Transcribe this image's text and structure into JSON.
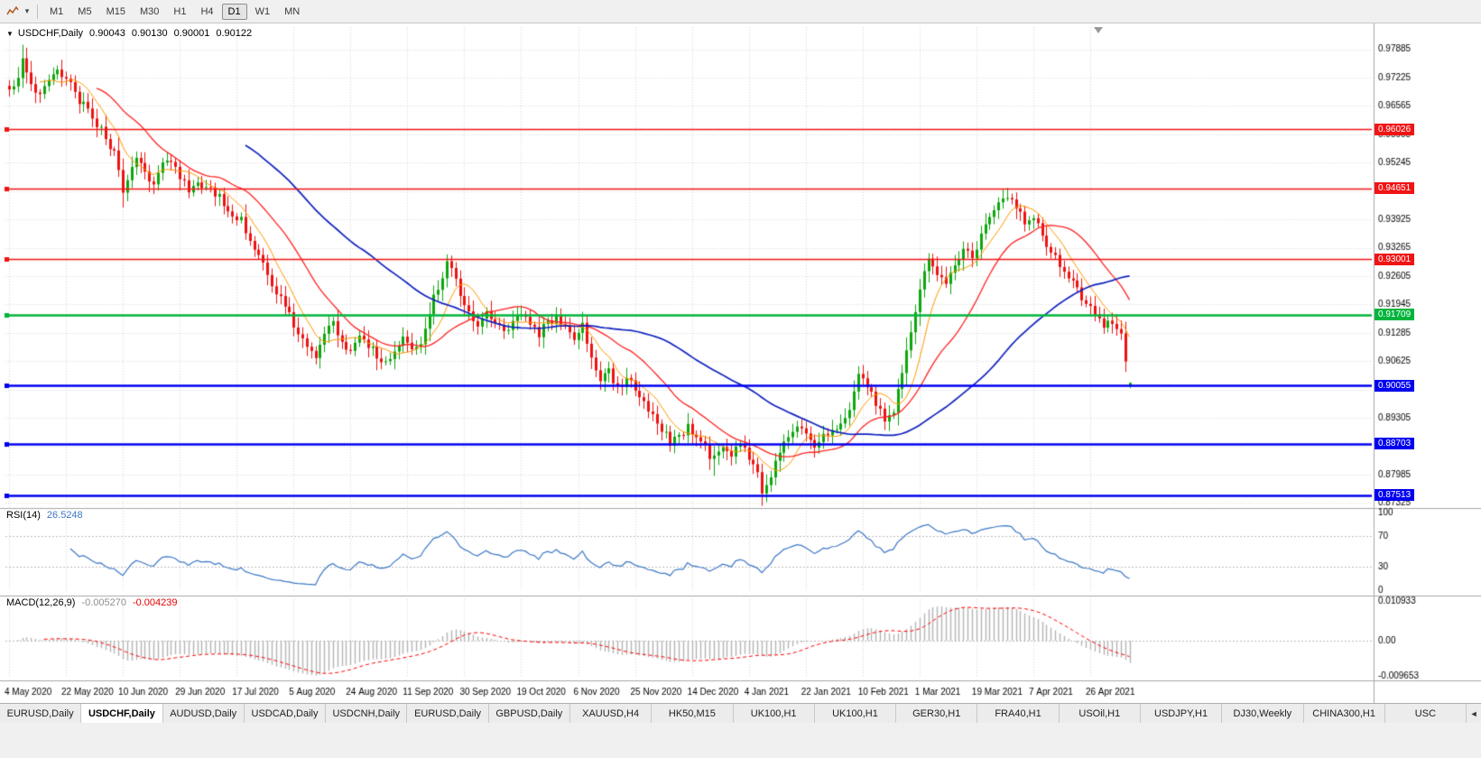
{
  "toolbar": {
    "timeframes": [
      "M1",
      "M5",
      "M15",
      "M30",
      "H1",
      "H4",
      "D1",
      "W1",
      "MN"
    ],
    "active_timeframe": "D1",
    "caret_glyph": "▾"
  },
  "chart_header": {
    "window_menu_icon": "▼",
    "symbol_period": "USDCHF,Daily",
    "open": "0.90043",
    "high": "0.90130",
    "low": "0.90001",
    "close": "0.90122"
  },
  "rsi_panel": {
    "label": "RSI(14)",
    "value": "26.5248",
    "axis_labels": [
      "100",
      "70",
      "30",
      "0"
    ]
  },
  "macd_panel": {
    "label": "MACD(12,26,9)",
    "main_value": "-0.005270",
    "signal_value": "-0.004239",
    "axis_labels": [
      "0.010933",
      "0.00",
      "-0.009653"
    ]
  },
  "tabs": {
    "active_index": 1,
    "scroll_left_icon": "◄",
    "items": [
      "EURUSD,Daily",
      "USDCHF,Daily",
      "AUDUSD,Daily",
      "USDCAD,Daily",
      "USDCNH,Daily",
      "EURUSD,Daily",
      "GBPUSD,Daily",
      "XAUUSD,H4",
      "HK50,M15",
      "UK100,H1",
      "UK100,H1",
      "GER30,H1",
      "FRA40,H1",
      "USOil,H1",
      "USDJPY,H1",
      "DJ30,Weekly",
      "CHINA300,H1",
      "USC"
    ]
  },
  "chart_data": {
    "type": "candlestick",
    "symbol": "USDCHF",
    "timeframe": "Daily",
    "bars": 257,
    "last_bar": {
      "open": 0.90043,
      "high": 0.9013,
      "low": 0.90001,
      "close": 0.90122
    },
    "price_axis": {
      "min": 0.8723,
      "max": 0.984,
      "decimals": 5
    },
    "tick_labels": [
      "0.97885",
      "0.97225",
      "0.96565",
      "0.95905",
      "0.95245",
      "0.94585",
      "0.93925",
      "0.93265",
      "0.92605",
      "0.91945",
      "0.91285",
      "0.90625",
      "0.89965",
      "0.89305",
      "0.88645",
      "0.87985",
      "0.87325"
    ],
    "x_label_bar_step": 13,
    "x_labels": [
      "4 May 2020",
      "22 May 2020",
      "10 Jun 2020",
      "29 Jun 2020",
      "17 Jul 2020",
      "5 Aug 2020",
      "24 Aug 2020",
      "11 Sep 2020",
      "30 Sep 2020",
      "19 Oct 2020",
      "6 Nov 2020",
      "25 Nov 2020",
      "14 Dec 2020",
      "4 Jan 2021",
      "22 Jan 2021",
      "10 Feb 2021",
      "1 Mar 2021",
      "19 Mar 2021",
      "7 Apr 2021",
      "26 Apr 2021"
    ],
    "levels": [
      {
        "price": 0.96026,
        "label": "0.96026",
        "color": "#f01414",
        "width": 1.5
      },
      {
        "price": 0.94651,
        "label": "0.94651",
        "color": "#f01414",
        "width": 1.5
      },
      {
        "price": 0.93001,
        "label": "0.93001",
        "color": "#f01414",
        "width": 1.5
      },
      {
        "price": 0.91709,
        "label": "0.91709",
        "color": "#00b43c",
        "width": 2.4
      },
      {
        "price": 0.90055,
        "label": "0.90055",
        "color": "#0000f0",
        "width": 2.4
      },
      {
        "price": 0.88703,
        "label": "0.88703",
        "color": "#0000f0",
        "width": 2.4
      },
      {
        "price": 0.87513,
        "label": "0.87513",
        "color": "#0000f0",
        "width": 2.4
      }
    ],
    "price_path": [
      [
        0,
        0.969
      ],
      [
        2,
        0.9722
      ],
      [
        3,
        0.9757
      ],
      [
        5,
        0.9706
      ],
      [
        7,
        0.9691
      ],
      [
        9,
        0.9718
      ],
      [
        11,
        0.9731
      ],
      [
        13,
        0.9713
      ],
      [
        14,
        0.9701
      ],
      [
        16,
        0.9666
      ],
      [
        18,
        0.9646
      ],
      [
        20,
        0.9613
      ],
      [
        22,
        0.9581
      ],
      [
        24,
        0.9546
      ],
      [
        25,
        0.9501
      ],
      [
        26,
        0.9449
      ],
      [
        27,
        0.9491
      ],
      [
        29,
        0.9539
      ],
      [
        31,
        0.9506
      ],
      [
        33,
        0.9473
      ],
      [
        35,
        0.9516
      ],
      [
        37,
        0.9529
      ],
      [
        39,
        0.9489
      ],
      [
        41,
        0.9466
      ],
      [
        43,
        0.9483
      ],
      [
        45,
        0.9466
      ],
      [
        47,
        0.9453
      ],
      [
        49,
        0.9429
      ],
      [
        51,
        0.9409
      ],
      [
        53,
        0.9389
      ],
      [
        55,
        0.9346
      ],
      [
        57,
        0.9303
      ],
      [
        59,
        0.9263
      ],
      [
        61,
        0.9223
      ],
      [
        63,
        0.9189
      ],
      [
        65,
        0.9149
      ],
      [
        67,
        0.9123
      ],
      [
        69,
        0.9089
      ],
      [
        70,
        0.9069
      ],
      [
        72,
        0.9129
      ],
      [
        74,
        0.9153
      ],
      [
        76,
        0.9109
      ],
      [
        78,
        0.9083
      ],
      [
        80,
        0.9119
      ],
      [
        82,
        0.9099
      ],
      [
        84,
        0.9073
      ],
      [
        86,
        0.9053
      ],
      [
        88,
        0.9093
      ],
      [
        90,
        0.9123
      ],
      [
        92,
        0.9091
      ],
      [
        94,
        0.9109
      ],
      [
        96,
        0.9179
      ],
      [
        98,
        0.9239
      ],
      [
        100,
        0.9289
      ],
      [
        101,
        0.9269
      ],
      [
        103,
        0.9219
      ],
      [
        105,
        0.9173
      ],
      [
        107,
        0.9149
      ],
      [
        109,
        0.9183
      ],
      [
        111,
        0.9159
      ],
      [
        113,
        0.9133
      ],
      [
        115,
        0.9151
      ],
      [
        117,
        0.9173
      ],
      [
        119,
        0.9143
      ],
      [
        121,
        0.9127
      ],
      [
        123,
        0.9151
      ],
      [
        125,
        0.9169
      ],
      [
        127,
        0.9133
      ],
      [
        129,
        0.9119
      ],
      [
        131,
        0.9156
      ],
      [
        133,
        0.9067
      ],
      [
        135,
        0.9013
      ],
      [
        137,
        0.9036
      ],
      [
        139,
        0.9003
      ],
      [
        141,
        0.9023
      ],
      [
        143,
        0.8993
      ],
      [
        145,
        0.8963
      ],
      [
        147,
        0.8933
      ],
      [
        149,
        0.8906
      ],
      [
        151,
        0.8873
      ],
      [
        153,
        0.8887
      ],
      [
        155,
        0.8911
      ],
      [
        157,
        0.8893
      ],
      [
        159,
        0.8859
      ],
      [
        161,
        0.8833
      ],
      [
        163,
        0.8863
      ],
      [
        165,
        0.8843
      ],
      [
        167,
        0.8873
      ],
      [
        169,
        0.8843
      ],
      [
        171,
        0.8799
      ],
      [
        172,
        0.8765
      ],
      [
        174,
        0.8803
      ],
      [
        176,
        0.8849
      ],
      [
        178,
        0.8887
      ],
      [
        180,
        0.8906
      ],
      [
        182,
        0.8889
      ],
      [
        184,
        0.8867
      ],
      [
        186,
        0.8883
      ],
      [
        188,
        0.8903
      ],
      [
        190,
        0.8923
      ],
      [
        192,
        0.8959
      ],
      [
        194,
        0.9039
      ],
      [
        196,
        0.9009
      ],
      [
        198,
        0.8963
      ],
      [
        200,
        0.8923
      ],
      [
        202,
        0.8953
      ],
      [
        204,
        0.9043
      ],
      [
        206,
        0.9133
      ],
      [
        208,
        0.9233
      ],
      [
        210,
        0.9303
      ],
      [
        212,
        0.9273
      ],
      [
        214,
        0.9243
      ],
      [
        216,
        0.9289
      ],
      [
        218,
        0.9319
      ],
      [
        220,
        0.9299
      ],
      [
        222,
        0.9356
      ],
      [
        224,
        0.9396
      ],
      [
        226,
        0.9429
      ],
      [
        228,
        0.9453
      ],
      [
        230,
        0.9416
      ],
      [
        232,
        0.9389
      ],
      [
        234,
        0.9399
      ],
      [
        236,
        0.9353
      ],
      [
        238,
        0.9319
      ],
      [
        240,
        0.9283
      ],
      [
        242,
        0.9253
      ],
      [
        244,
        0.9229
      ],
      [
        246,
        0.9199
      ],
      [
        248,
        0.9166
      ],
      [
        250,
        0.9143
      ],
      [
        252,
        0.9153
      ],
      [
        253,
        0.9133
      ],
      [
        254,
        0.9119
      ],
      [
        255,
        0.9062
      ],
      [
        256,
        0.90122
      ]
    ],
    "spike_highs": [
      [
        3,
        0.9784
      ],
      [
        100,
        0.9301
      ],
      [
        228,
        0.9466
      ]
    ],
    "spike_lows": [
      [
        26,
        0.942
      ],
      [
        161,
        0.8796
      ],
      [
        172,
        0.8757
      ]
    ],
    "moving_averages": [
      {
        "period": 8,
        "color": "#ff9900",
        "width": 1
      },
      {
        "period": 21,
        "color": "#ff2222",
        "width": 1.3
      },
      {
        "period": 55,
        "color": "#1022c0",
        "width": 1.7
      }
    ],
    "colors": {
      "up": "#0da60d",
      "down": "#ee1111",
      "grid": "#d8d8d8",
      "rsi_line": "#3c78c8",
      "macd_hist": "#b4b4b4",
      "macd_signal": "#ff0000"
    },
    "rsi": {
      "period": 14,
      "guides": [
        70,
        30
      ],
      "range": [
        0,
        100
      ]
    },
    "macd": {
      "fast": 12,
      "slow": 26,
      "signal_period": 9,
      "axis_max": 0.010933,
      "axis_min": -0.009653
    }
  }
}
